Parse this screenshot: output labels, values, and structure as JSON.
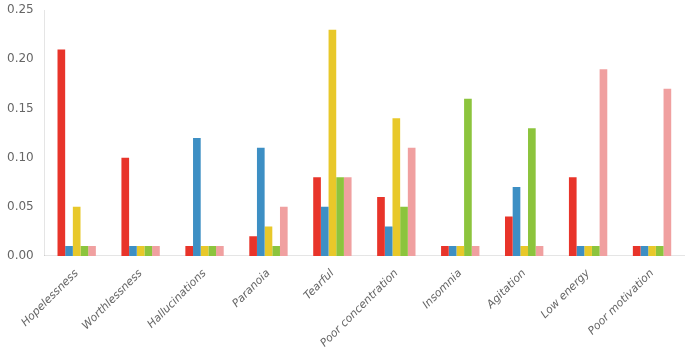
{
  "chart_data": {
    "type": "bar",
    "categories": [
      "Hopelessness",
      "Worthlessness",
      "Hallucinations",
      "Paranoia",
      "Tearful",
      "Poor concentration",
      "Insomnia",
      "Agitation",
      "Low energy",
      "Poor motivation"
    ],
    "series": [
      {
        "color": "#e8342a",
        "values": [
          0.21,
          0.1,
          0.01,
          0.02,
          0.08,
          0.06,
          0.01,
          0.04,
          0.08,
          0.01
        ]
      },
      {
        "color": "#3d8fc4",
        "values": [
          0.01,
          0.01,
          0.12,
          0.11,
          0.05,
          0.03,
          0.01,
          0.07,
          0.01,
          0.01
        ]
      },
      {
        "color": "#e8c82a",
        "values": [
          0.05,
          0.01,
          0.01,
          0.03,
          0.23,
          0.14,
          0.01,
          0.01,
          0.01,
          0.01
        ]
      },
      {
        "color": "#8cc43d",
        "values": [
          0.01,
          0.01,
          0.01,
          0.01,
          0.08,
          0.05,
          0.16,
          0.13,
          0.01,
          0.01
        ]
      },
      {
        "color": "#f0a0a0",
        "values": [
          0.01,
          0.01,
          0.01,
          0.05,
          0.08,
          0.11,
          0.01,
          0.01,
          0.19,
          0.17
        ]
      }
    ],
    "ylim": [
      0,
      0.25
    ],
    "yticks": [
      {
        "value": 0,
        "label": "0.00"
      },
      0.05,
      {
        "value": 0.1,
        "label": "0.10"
      },
      0.15,
      {
        "value": 0.2,
        "label": "0.20"
      },
      0.25
    ],
    "grid": false
  }
}
